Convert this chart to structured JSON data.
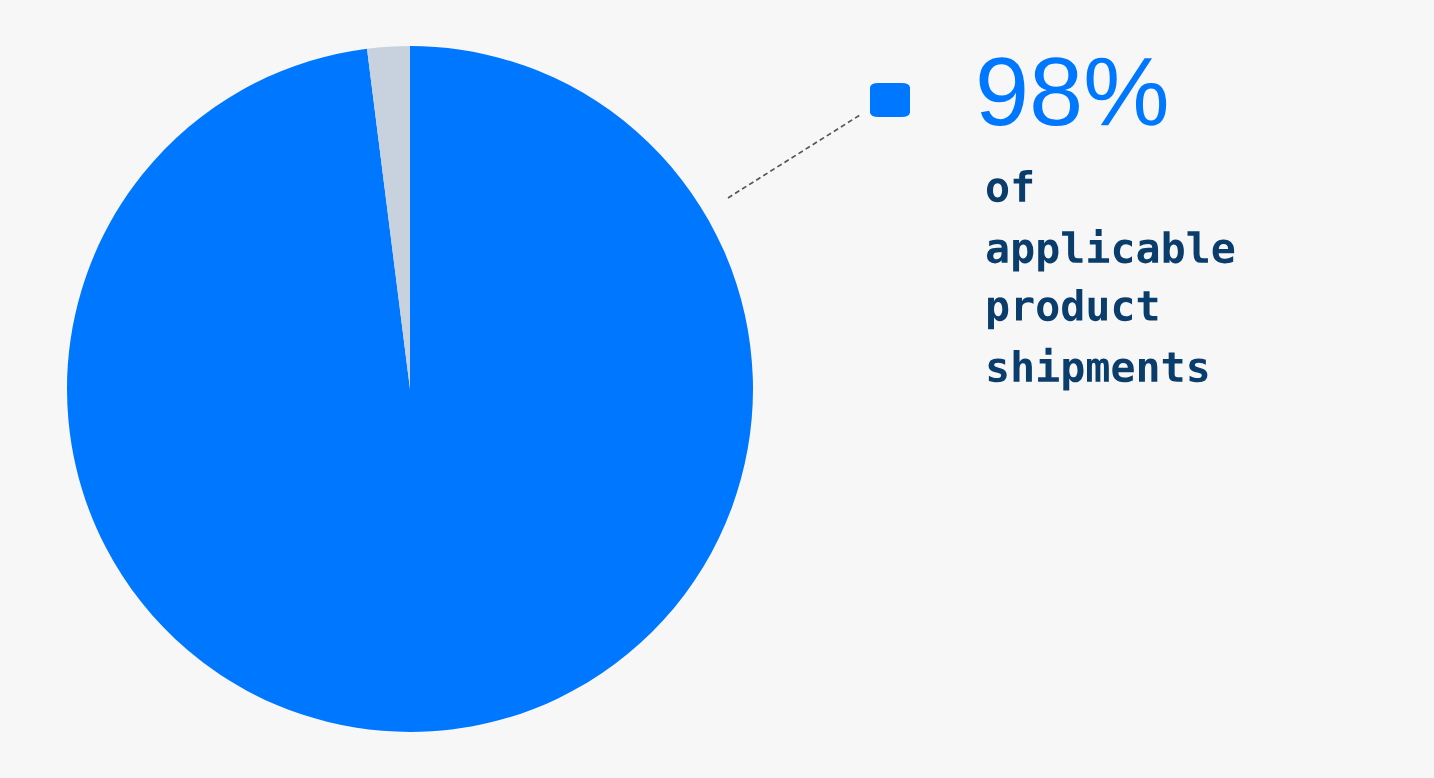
{
  "chart_data": {
    "type": "pie",
    "categories": [
      "of applicable product shipments",
      null
    ],
    "values": [
      98,
      2
    ],
    "colors": [
      "#0077ff",
      "#c8d2de"
    ],
    "value_labels": [
      "98%",
      null
    ]
  }
}
